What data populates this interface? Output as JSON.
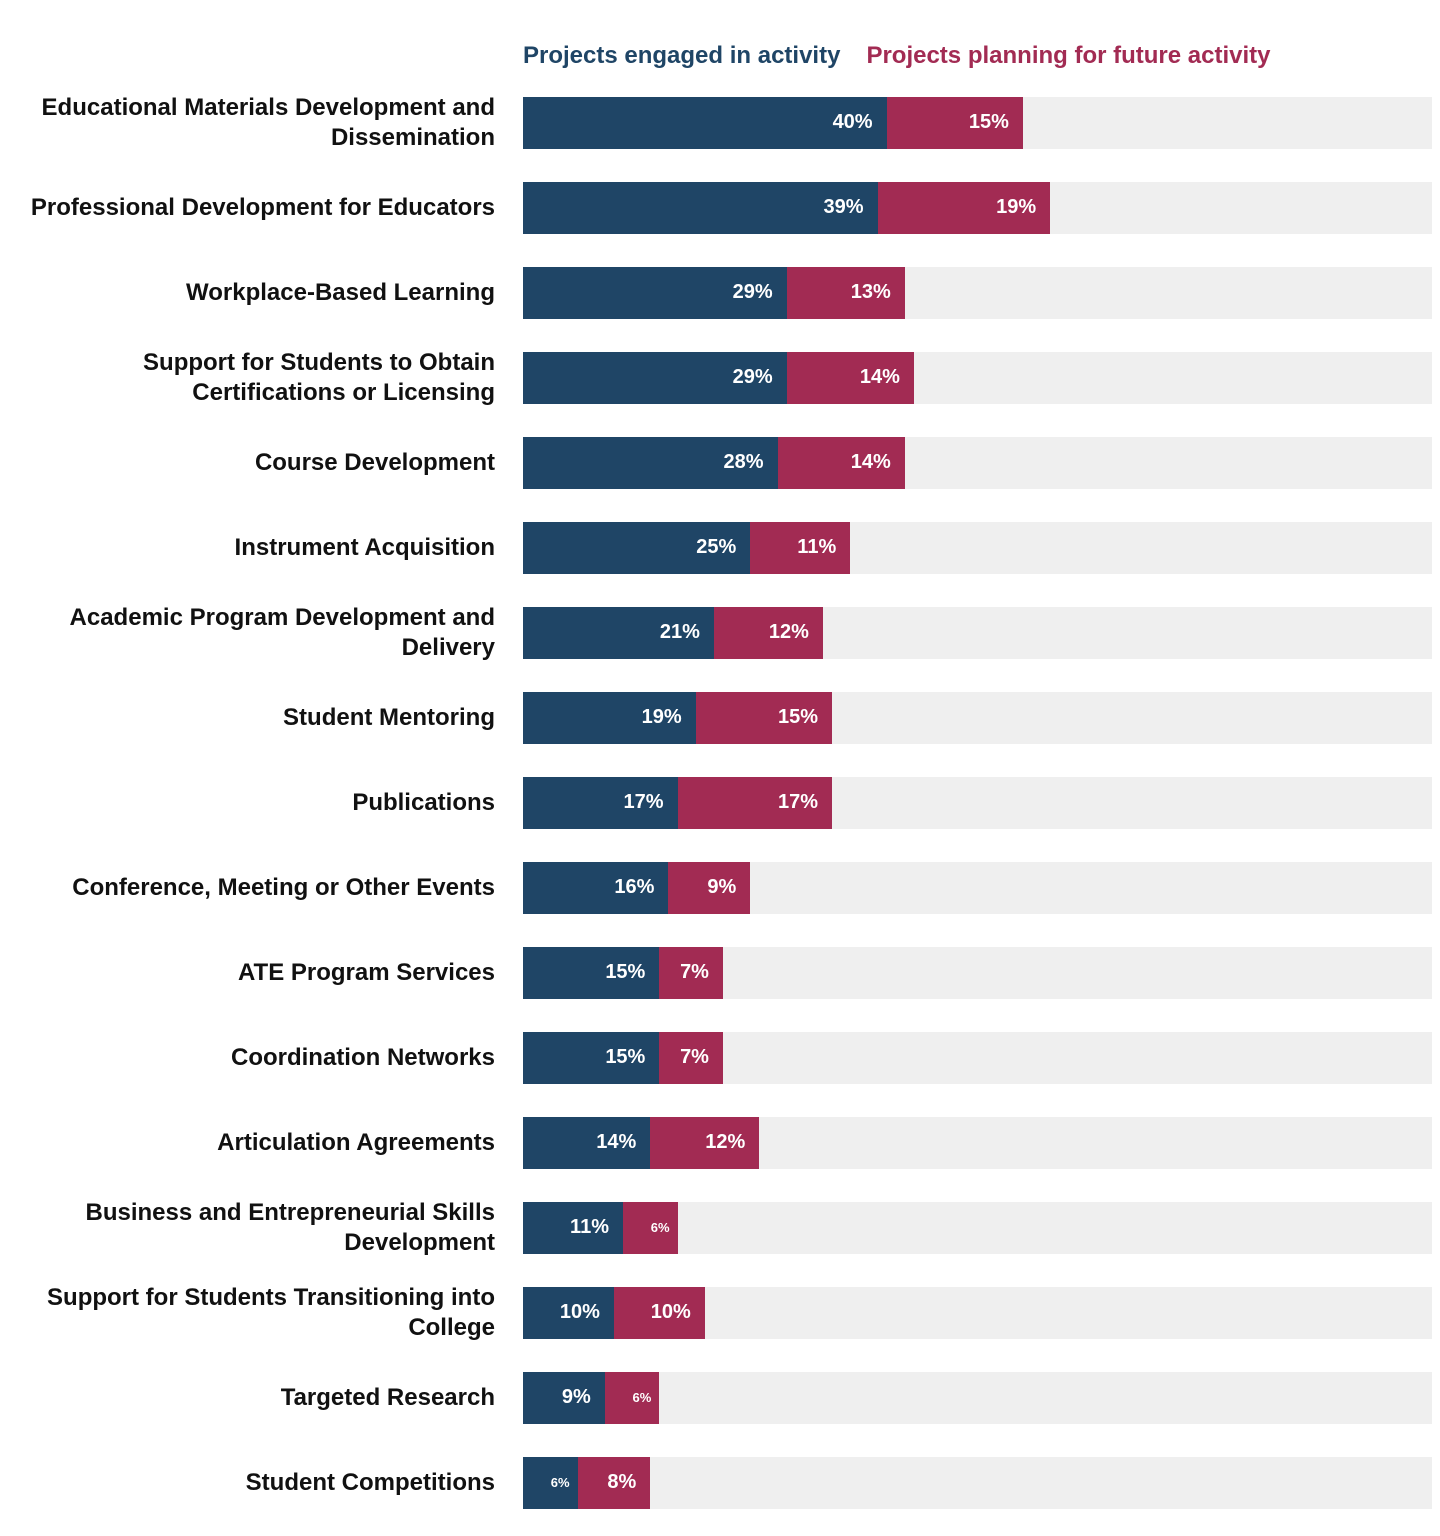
{
  "chart_data": {
    "type": "bar",
    "orientation": "horizontal-stacked",
    "title": "",
    "xlabel": "",
    "ylabel": "",
    "xlim": [
      0,
      100
    ],
    "value_suffix": "%",
    "track_color": "#efefef",
    "legend_position": "top",
    "legend": [
      {
        "label": "Projects engaged in activity",
        "color": "#1f4566"
      },
      {
        "label": "Projects planning for future activity",
        "color": "#a22b53"
      }
    ],
    "categories": [
      "Educational Materials Development and Dissemination",
      "Professional Development for Educators",
      "Workplace-Based Learning",
      "Support for Students to Obtain Certifications or Licensing",
      "Course Development",
      "Instrument Acquisition",
      "Academic Program Development and Delivery",
      "Student Mentoring",
      "Publications",
      "Conference, Meeting or Other Events",
      "ATE Program Services",
      "Coordination Networks",
      "Articulation Agreements",
      "Business and Entrepreneurial Skills Development",
      "Support for Students Transitioning into College",
      "Targeted Research",
      "Student Competitions"
    ],
    "series": [
      {
        "name": "Projects engaged in activity",
        "color": "#1f4566",
        "values": [
          40,
          39,
          29,
          29,
          28,
          25,
          21,
          19,
          17,
          16,
          15,
          15,
          14,
          11,
          10,
          9,
          6
        ]
      },
      {
        "name": "Projects planning for future activity",
        "color": "#a22b53",
        "values": [
          15,
          19,
          13,
          14,
          14,
          11,
          12,
          15,
          17,
          9,
          7,
          7,
          12,
          6,
          10,
          6,
          8
        ]
      }
    ]
  }
}
